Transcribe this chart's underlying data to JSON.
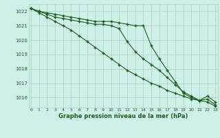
{
  "x": [
    0,
    1,
    2,
    3,
    4,
    5,
    6,
    7,
    8,
    9,
    10,
    11,
    12,
    13,
    14,
    15,
    16,
    17,
    18,
    19,
    20,
    21,
    22,
    23
  ],
  "line1": [
    1022.2,
    1022.0,
    1021.9,
    1021.8,
    1021.7,
    1021.6,
    1021.5,
    1021.4,
    1021.3,
    1021.3,
    1021.3,
    1021.2,
    1021.1,
    1021.0,
    1021.0,
    1019.6,
    1018.7,
    1017.9,
    1017.1,
    1016.3,
    1016.0,
    1015.8,
    1015.9,
    1015.5
  ],
  "line2": [
    1022.2,
    1022.0,
    1021.8,
    1021.6,
    1021.5,
    1021.4,
    1021.3,
    1021.2,
    1021.1,
    1021.1,
    1021.0,
    1020.8,
    1019.9,
    1019.2,
    1018.7,
    1018.3,
    1017.9,
    1017.4,
    1016.9,
    1016.4,
    1016.1,
    1015.8,
    1016.1,
    1015.7
  ],
  "line3": [
    1022.2,
    1021.9,
    1021.6,
    1021.3,
    1021.0,
    1020.7,
    1020.3,
    1019.9,
    1019.5,
    1019.1,
    1018.7,
    1018.3,
    1017.9,
    1017.6,
    1017.3,
    1017.0,
    1016.8,
    1016.5,
    1016.3,
    1016.1,
    1015.9,
    1015.8,
    1015.7,
    1015.4
  ],
  "bg_color": "#cff0e8",
  "grid_color": "#b0d8cc",
  "line_color": "#1a5c1a",
  "xlabel": "Graphe pression niveau de la mer (hPa)",
  "ylim_min": 1015.3,
  "ylim_max": 1022.5,
  "yticks": [
    1016,
    1017,
    1018,
    1019,
    1020,
    1021,
    1022
  ],
  "xticks": [
    0,
    1,
    2,
    3,
    4,
    5,
    6,
    7,
    8,
    9,
    10,
    11,
    12,
    13,
    14,
    15,
    16,
    17,
    18,
    19,
    20,
    21,
    22,
    23
  ]
}
